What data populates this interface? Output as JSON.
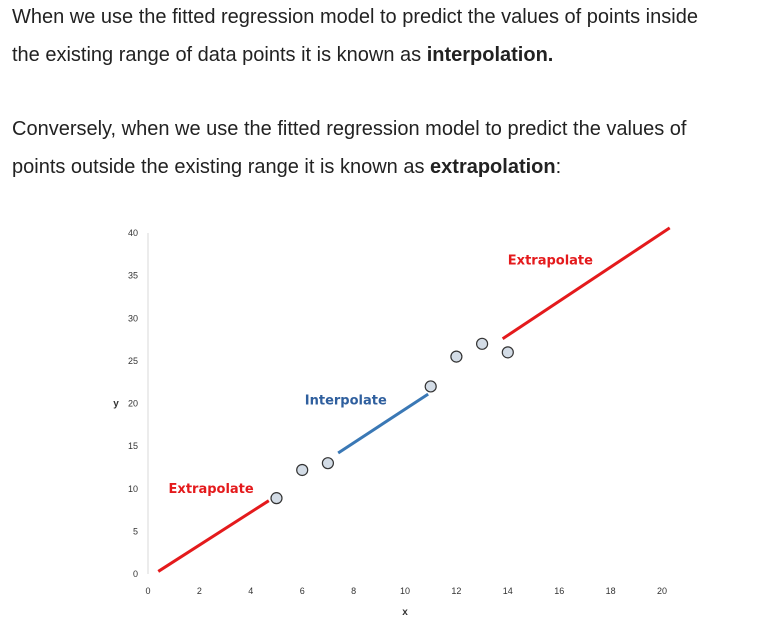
{
  "text": {
    "p1_line1": "When we use the fitted regression model to predict the values of points inside",
    "p1_line2_pre": "the existing range of data points it is known as ",
    "p1_bold": "interpolation.",
    "p2_line1": "Conversely, when we use the fitted regression model to predict the values of",
    "p2_line2_pre": "points outside the existing range it is known as ",
    "p2_bold": "extrapolation",
    "p2_post": ":"
  },
  "chart_data": {
    "type": "scatter",
    "xlabel": "x",
    "ylabel": "y",
    "xlim": [
      0,
      20
    ],
    "ylim": [
      0,
      40
    ],
    "xticks": [
      0,
      2,
      4,
      6,
      8,
      10,
      12,
      14,
      16,
      18,
      20
    ],
    "yticks": [
      0,
      5,
      10,
      15,
      20,
      25,
      30,
      35,
      40
    ],
    "grid": false,
    "points": [
      {
        "x": 5.0,
        "y": 8.9
      },
      {
        "x": 6.0,
        "y": 12.2
      },
      {
        "x": 7.0,
        "y": 13.0
      },
      {
        "x": 11.0,
        "y": 22.0
      },
      {
        "x": 12.0,
        "y": 25.5
      },
      {
        "x": 13.0,
        "y": 27.0
      },
      {
        "x": 14.0,
        "y": 26.0
      }
    ],
    "segments": [
      {
        "label": "Extrapolate",
        "color": "#e41a1c",
        "x": [
          0.4,
          4.7
        ],
        "y": [
          0.3,
          8.6
        ]
      },
      {
        "label": "Interpolate",
        "color": "#3a78b5",
        "x": [
          7.4,
          10.9
        ],
        "y": [
          14.2,
          21.1
        ]
      },
      {
        "label": "Extrapolate",
        "color": "#e41a1c",
        "x": [
          13.8,
          20.3
        ],
        "y": [
          27.6,
          40.6
        ]
      }
    ],
    "annotations": [
      {
        "text": "Extrapolate",
        "color": "#e41a1c",
        "x": 0.8,
        "y": 9.5
      },
      {
        "text": "Interpolate",
        "color": "#2f5f9e",
        "x": 6.1,
        "y": 19.9
      },
      {
        "text": "Extrapolate",
        "color": "#e41a1c",
        "x": 14.0,
        "y": 36.3
      }
    ],
    "marker_fill": "#d3dce6",
    "marker_stroke": "#333333"
  }
}
